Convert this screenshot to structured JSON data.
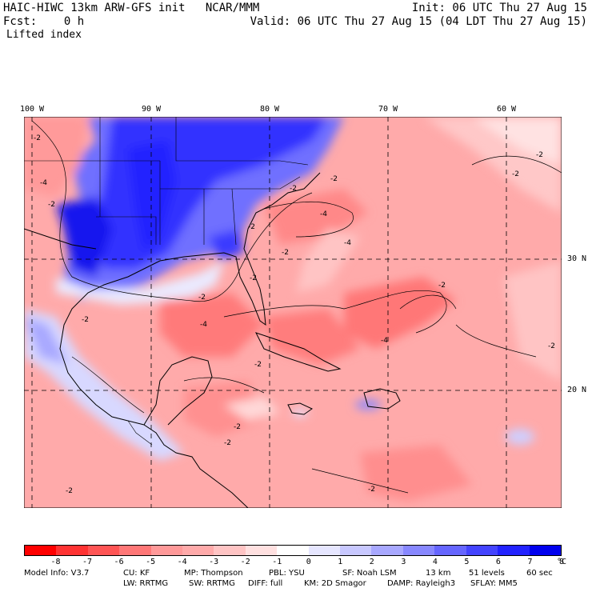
{
  "header": {
    "title_left": "HAIC-HIWC 13km ARW-GFS init   NCAR/MMM",
    "init": "Init: 06 UTC Thu 27 Aug 15",
    "fcst_left": "Fcst:    0 h",
    "valid": "Valid: 06 UTC Thu 27 Aug 15 (04 LDT Thu 27 Aug 15)",
    "field": "Lifted index"
  },
  "axes": {
    "longitudes": [
      "100 W",
      "90 W",
      "80 W",
      "70 W",
      "60 W"
    ],
    "latitudes": [
      "30 N",
      "20 N"
    ]
  },
  "contour_labels": [
    "-2",
    "-4",
    "-2",
    "-2",
    "-2",
    "-4",
    "-4",
    "-2",
    "-2",
    "-2",
    "-4",
    "-2",
    "-2",
    "-2",
    "-4",
    "-2",
    "-2",
    "-2",
    "-2",
    "-2",
    "-2",
    "-2",
    "-2"
  ],
  "colorbar": {
    "colors": [
      "#ff0000",
      "#ff3333",
      "#ff5555",
      "#ff7777",
      "#ff9999",
      "#ffaaaa",
      "#ffc4c4",
      "#ffe0e0",
      "#ffffff",
      "#e6e6ff",
      "#c8c8ff",
      "#a8a8ff",
      "#8888ff",
      "#6666ff",
      "#4444ff",
      "#2222ff",
      "#0000ee"
    ],
    "labels": [
      "-8",
      "-7",
      "-6",
      "-5",
      "-4",
      "-3",
      "-2",
      "-1",
      "0",
      "1",
      "2",
      "3",
      "4",
      "5",
      "6",
      "7",
      "8"
    ],
    "unit": "°C"
  },
  "footer": {
    "line1": [
      "Model Info: V3.7",
      "CU: KF",
      "MP: Thompson",
      "PBL: YSU",
      "SF: Noah LSM",
      "13 km",
      "51 levels",
      "60 sec"
    ],
    "line2": [
      "LW: RRTMG",
      "SW: RRTMG",
      "DIFF: full",
      "KM: 2D Smagor",
      "DAMP: Rayleigh3",
      "SFLAY: MM5"
    ]
  }
}
